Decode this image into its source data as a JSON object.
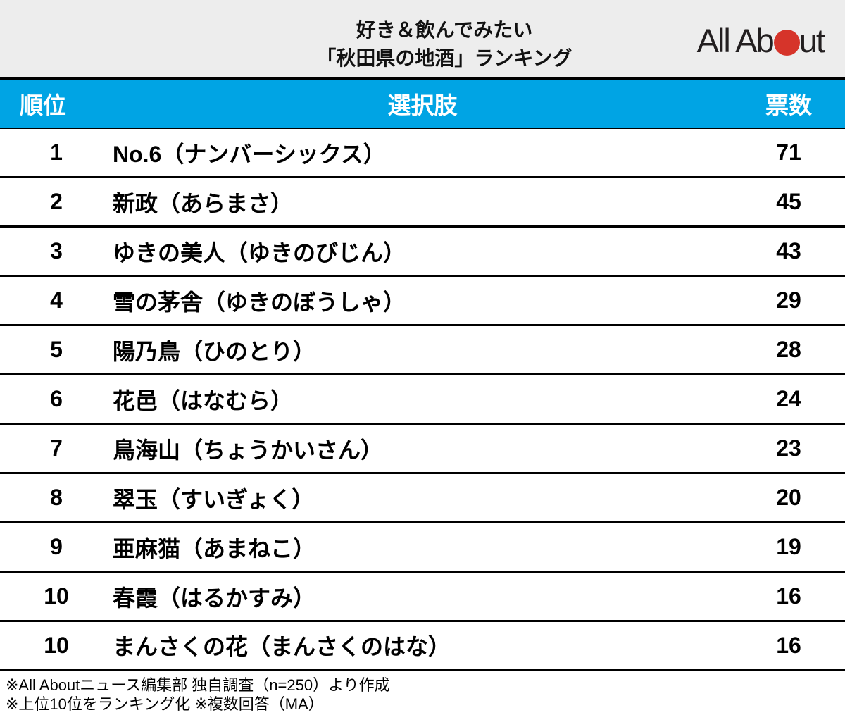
{
  "header": {
    "title_line1": "好き＆飲んでみたい",
    "title_line2": "「秋田県の地酒」ランキング",
    "logo": {
      "name": "All About",
      "text_before_dot": "All Ab",
      "text_after_dot": "ut",
      "dot_color": "#d6342a"
    }
  },
  "table": {
    "columns": {
      "rank": "順位",
      "choice": "選択肢",
      "votes": "票数"
    },
    "rows": [
      {
        "rank": "1",
        "choice": "No.6（ナンバーシックス）",
        "votes": "71"
      },
      {
        "rank": "2",
        "choice": "新政（あらまさ）",
        "votes": "45"
      },
      {
        "rank": "3",
        "choice": "ゆきの美人（ゆきのびじん）",
        "votes": "43"
      },
      {
        "rank": "4",
        "choice": "雪の茅舎（ゆきのぼうしゃ）",
        "votes": "29"
      },
      {
        "rank": "5",
        "choice": "陽乃鳥（ひのとり）",
        "votes": "28"
      },
      {
        "rank": "6",
        "choice": "花邑（はなむら）",
        "votes": "24"
      },
      {
        "rank": "7",
        "choice": "鳥海山（ちょうかいさん）",
        "votes": "23"
      },
      {
        "rank": "8",
        "choice": "翠玉（すいぎょく）",
        "votes": "20"
      },
      {
        "rank": "9",
        "choice": "亜麻猫（あまねこ）",
        "votes": "19"
      },
      {
        "rank": "10",
        "choice": "春霞（はるかすみ）",
        "votes": "16"
      },
      {
        "rank": "10",
        "choice": "まんさくの花（まんさくのはな）",
        "votes": "16"
      }
    ]
  },
  "footer": {
    "note1": "※All Aboutニュース編集部 独自調査（n=250）より作成",
    "note2": "※上位10位をランキング化 ※複数回答（MA）"
  },
  "colors": {
    "accent_blue": "#00a4e4",
    "logo_red": "#d6342a",
    "banner_gray": "#ededed",
    "border_black": "#000000"
  },
  "chart_data": {
    "type": "table",
    "title": "好き＆飲んでみたい「秋田県の地酒」ランキング",
    "columns": [
      "順位",
      "選択肢",
      "票数"
    ],
    "ranks": [
      1,
      2,
      3,
      4,
      5,
      6,
      7,
      8,
      9,
      10,
      10
    ],
    "categories": [
      "No.6（ナンバーシックス）",
      "新政（あらまさ）",
      "ゆきの美人（ゆきのびじん）",
      "雪の茅舎（ゆきのぼうしゃ）",
      "陽乃鳥（ひのとり）",
      "花邑（はなむら）",
      "鳥海山（ちょうかいさん）",
      "翠玉（すいぎょく）",
      "亜麻猫（あまねこ）",
      "春霞（はるかすみ）",
      "まんさくの花（まんさくのはな）"
    ],
    "values": [
      71,
      45,
      43,
      29,
      28,
      24,
      23,
      20,
      19,
      16,
      16
    ],
    "notes": [
      "※All Aboutニュース編集部 独自調査（n=250）より作成",
      "※上位10位をランキング化 ※複数回答（MA）"
    ],
    "source": "All About"
  }
}
